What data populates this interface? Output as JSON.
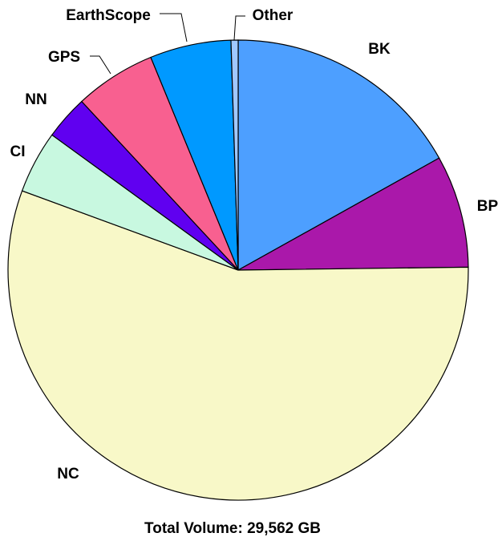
{
  "chart_data": {
    "type": "pie",
    "title": "Total Volume:  29,562 GB",
    "categories": [
      "BK",
      "BP",
      "NC",
      "CI",
      "NN",
      "GPS",
      "EarthScope",
      "Other"
    ],
    "values": [
      16.9,
      7.9,
      55.8,
      4.4,
      3.1,
      5.7,
      5.7,
      0.5
    ],
    "colors": [
      "#4d9fff",
      "#aa18aa",
      "#f8f8c8",
      "#c8f8e0",
      "#6000f0",
      "#f86090",
      "#0099ff",
      "#a0c8ff"
    ]
  }
}
